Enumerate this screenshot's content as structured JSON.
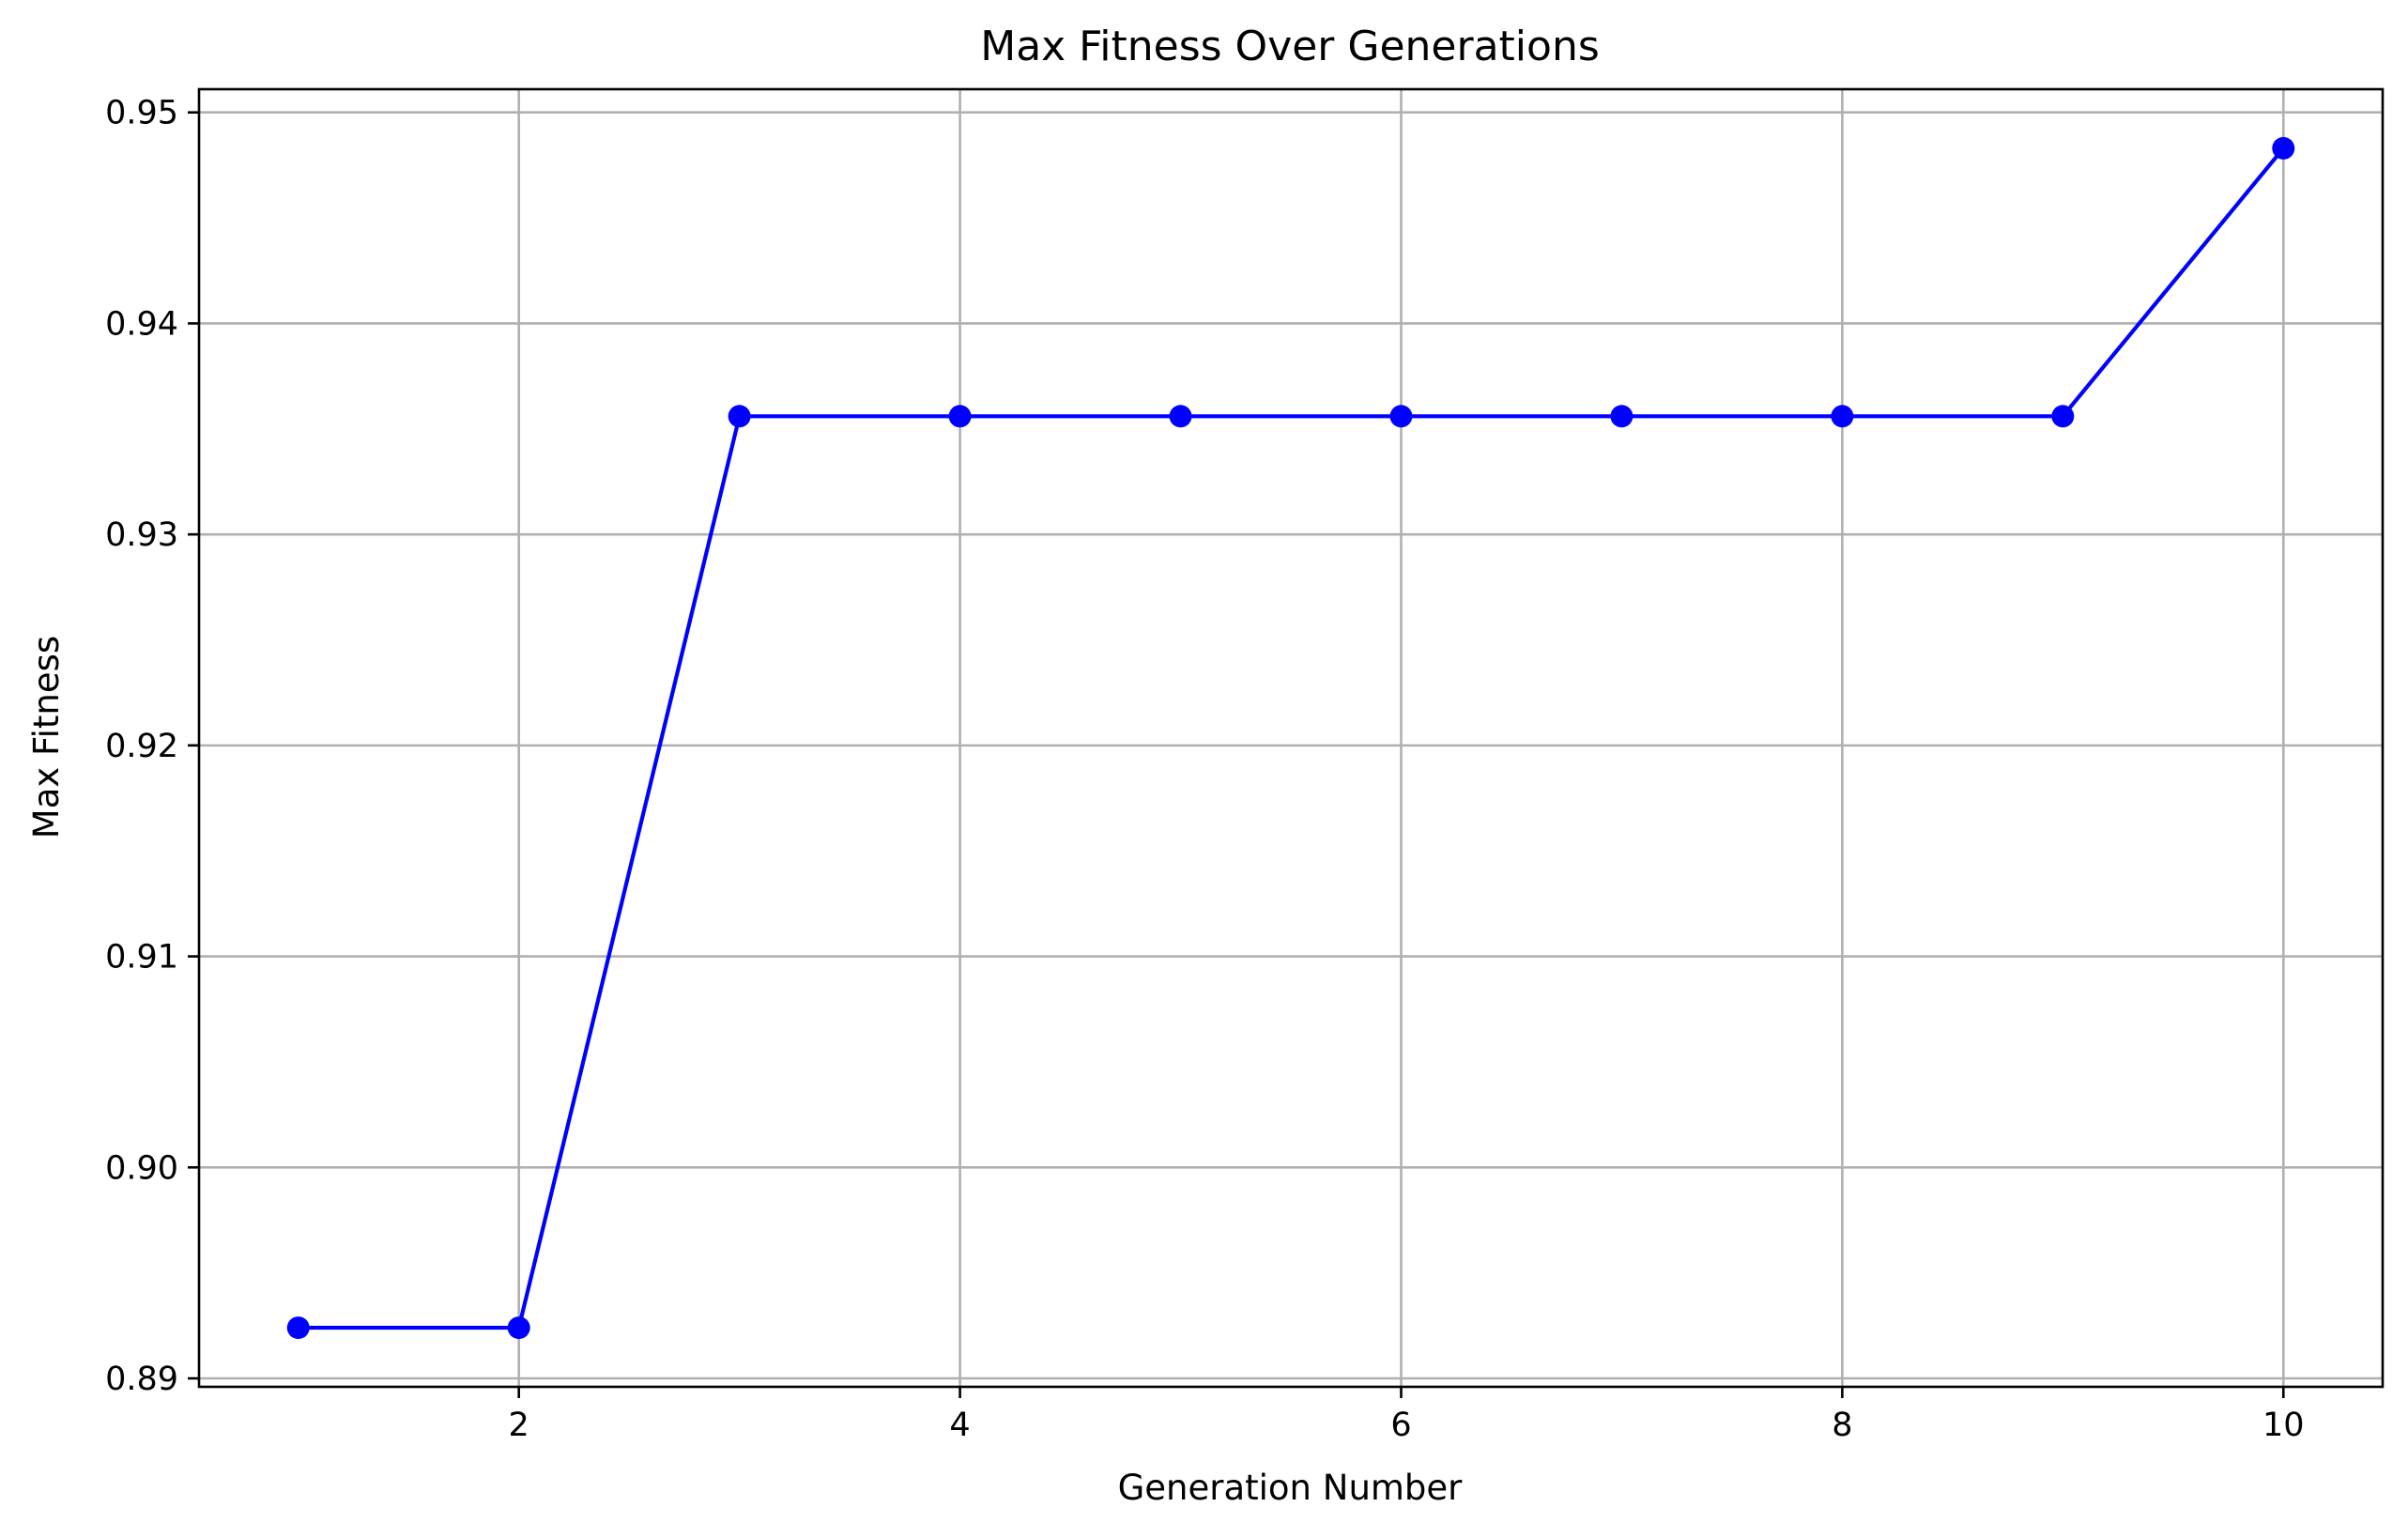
{
  "chart_data": {
    "type": "line",
    "title": "Max Fitness Over Generations",
    "xlabel": "Generation Number",
    "ylabel": "Max Fitness",
    "x": [
      1,
      2,
      3,
      4,
      5,
      6,
      7,
      8,
      9,
      10
    ],
    "series": [
      {
        "values": [
          0.8924,
          0.8924,
          0.9356,
          0.9356,
          0.9356,
          0.9356,
          0.9356,
          0.9356,
          0.9356,
          0.9483
        ],
        "color": "#0000ff",
        "marker": "circle"
      }
    ],
    "xlim": [
      0.55,
      10.45
    ],
    "ylim": [
      0.8896,
      0.9511
    ],
    "xticks": [
      2,
      4,
      6,
      8,
      10
    ],
    "xtick_labels": [
      "2",
      "4",
      "6",
      "8",
      "10"
    ],
    "yticks": [
      0.89,
      0.9,
      0.91,
      0.92,
      0.93,
      0.94,
      0.95
    ],
    "ytick_labels": [
      "0.89",
      "0.90",
      "0.91",
      "0.92",
      "0.93",
      "0.94",
      "0.95"
    ],
    "grid": true,
    "legend": "none"
  }
}
